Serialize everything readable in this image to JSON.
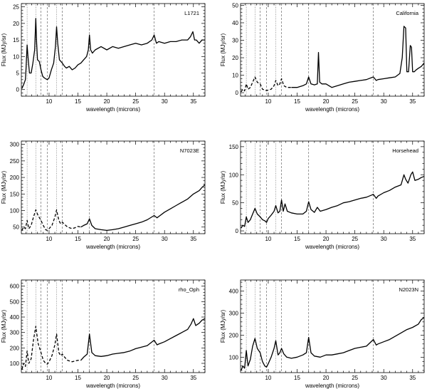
{
  "chart_data": [
    {
      "type": "line",
      "label": "L1721",
      "xlabel": "wavelength (microns)",
      "ylabel": "Flux (MJy/sr)",
      "xlim": [
        5.2,
        37
      ],
      "ylim": [
        -2,
        26
      ],
      "xticks": [
        10,
        15,
        20,
        25,
        30,
        35
      ],
      "yticks": [
        0,
        5,
        10,
        15,
        20,
        25
      ],
      "vlines_dotted": [
        6.2,
        7.7,
        11.3
      ],
      "vlines_dashed": [
        8.6,
        9.7,
        12.3,
        17.0,
        28.2
      ],
      "series": [
        {
          "name": "L1721 solid",
          "style": "solid",
          "x": [
            5.3,
            5.6,
            5.9,
            6.0,
            6.2,
            6.35,
            6.6,
            6.9,
            7.2,
            7.5,
            7.7,
            7.85,
            8.0,
            8.3,
            8.6,
            8.9,
            9.2,
            9.5,
            9.7,
            10.0,
            10.4,
            10.8,
            11.1,
            11.3,
            11.5,
            11.8,
            12.3,
            12.7,
            13.0,
            13.5,
            14.0,
            14.5,
            15.0,
            15.5,
            16.0,
            16.5,
            16.8,
            17.0,
            17.2,
            17.5,
            18.0,
            19.0,
            20.0,
            21.0,
            22.0,
            23.0,
            24.0,
            25.0,
            26.0,
            27.0,
            27.8,
            28.2,
            28.6,
            29.0,
            30.0,
            31.0,
            32.0,
            33.0,
            34.0,
            34.5,
            34.9,
            35.2,
            35.5,
            36.0,
            36.5,
            37.0
          ],
          "y": [
            0.3,
            1.5,
            3,
            6,
            13.5,
            10,
            5,
            5,
            8,
            12,
            21.5,
            14,
            9,
            8.5,
            6,
            4,
            3.5,
            3.2,
            3,
            3.5,
            6,
            8,
            13,
            19,
            14,
            9,
            8,
            7,
            6.5,
            7,
            6,
            6.5,
            7.5,
            8,
            9,
            10,
            12,
            16.5,
            12,
            11,
            12,
            13,
            12,
            13,
            12.5,
            13,
            13.5,
            14,
            13.5,
            14,
            15,
            16.5,
            14,
            14.5,
            14,
            14.5,
            14.5,
            15,
            15,
            16,
            17.5,
            15,
            15,
            14,
            15,
            15
          ]
        }
      ]
    },
    {
      "type": "line",
      "label": "California",
      "xlabel": "wavelength (microns)",
      "ylabel": "Flux (MJy/sr)",
      "xlim": [
        5.2,
        37
      ],
      "ylim": [
        -2,
        51
      ],
      "xticks": [
        10,
        15,
        20,
        25,
        30,
        35
      ],
      "yticks": [
        0,
        10,
        20,
        30,
        40,
        50
      ],
      "vlines_dotted": [
        6.2,
        7.7,
        11.3
      ],
      "vlines_dashed": [
        8.6,
        9.7,
        12.3,
        17.0,
        28.2
      ],
      "series": [
        {
          "name": "California dashed",
          "style": "dashed",
          "x": [
            5.3,
            5.6,
            5.9,
            6.2,
            6.5,
            6.9,
            7.3,
            7.7,
            8.1,
            8.6,
            9.0,
            9.4,
            9.7,
            10.0,
            10.5,
            11.0,
            11.3,
            11.7,
            12.0,
            12.3,
            12.7,
            13.2,
            14.0
          ],
          "y": [
            0.5,
            2,
            1,
            5,
            2,
            3,
            6,
            9,
            6,
            5,
            2,
            1.5,
            1.2,
            1.5,
            2,
            4,
            7,
            4,
            5,
            8,
            4,
            3,
            3
          ]
        },
        {
          "name": "California solid",
          "style": "solid",
          "x": [
            14.0,
            15.0,
            16.0,
            16.6,
            17.0,
            17.4,
            18.0,
            18.5,
            18.7,
            18.9,
            19.3,
            20.0,
            21.0,
            21.5,
            22.0,
            23.0,
            24.0,
            25.0,
            26.0,
            27.0,
            28.2,
            28.7,
            29.0,
            30.0,
            31.0,
            32.0,
            32.8,
            33.2,
            33.5,
            33.8,
            34.0,
            34.3,
            34.6,
            34.8,
            35.0,
            35.3,
            35.6,
            36.0,
            36.5,
            37.0
          ],
          "y": [
            3,
            3,
            4,
            5,
            9,
            5,
            4.5,
            5,
            23,
            6,
            5,
            5,
            3,
            3.5,
            4,
            5,
            6,
            6.5,
            7,
            7.5,
            9,
            7,
            7.5,
            8,
            8.5,
            9,
            11,
            20,
            38,
            37,
            12,
            12,
            27,
            26,
            12,
            12,
            13,
            14,
            15,
            17
          ]
        }
      ]
    },
    {
      "type": "line",
      "label": "N7023E",
      "xlabel": "wavelength (microns)",
      "ylabel": "Flux (MJy/sr)",
      "xlim": [
        5.2,
        37
      ],
      "ylim": [
        30,
        310
      ],
      "xticks": [
        10,
        15,
        20,
        25,
        30,
        35
      ],
      "yticks": [
        50,
        100,
        150,
        200,
        250,
        300
      ],
      "vlines_dotted": [
        6.2,
        7.7,
        11.3
      ],
      "vlines_dashed": [
        8.6,
        9.7,
        12.3,
        17.0,
        28.2
      ],
      "series": [
        {
          "name": "N7023E dashed",
          "style": "dashed",
          "x": [
            5.3,
            5.6,
            5.9,
            6.2,
            6.5,
            6.9,
            7.3,
            7.7,
            8.1,
            8.6,
            9.0,
            9.4,
            9.7,
            10.0,
            10.5,
            11.0,
            11.3,
            11.7,
            12.0,
            12.3,
            12.7,
            13.2,
            14.0,
            14.5,
            15.0,
            15.5
          ],
          "y": [
            40,
            50,
            45,
            70,
            45,
            55,
            80,
            102,
            85,
            70,
            55,
            42,
            40,
            45,
            55,
            80,
            102,
            70,
            60,
            65,
            58,
            50,
            45,
            48,
            52,
            50
          ]
        },
        {
          "name": "N7023E solid",
          "style": "solid",
          "x": [
            15.5,
            16.0,
            16.6,
            17.0,
            17.4,
            18.0,
            19.0,
            20.0,
            21.0,
            22.0,
            23.0,
            24.0,
            25.0,
            26.0,
            27.0,
            28.2,
            28.7,
            29.0,
            30.0,
            31.0,
            32.0,
            33.0,
            34.0,
            35.0,
            36.0,
            36.5,
            37.0
          ],
          "y": [
            50,
            55,
            60,
            75,
            55,
            45,
            42,
            40,
            42,
            45,
            50,
            55,
            60,
            65,
            72,
            85,
            78,
            82,
            95,
            105,
            115,
            125,
            135,
            150,
            160,
            170,
            178
          ]
        }
      ]
    },
    {
      "type": "line",
      "label": "Horsehead",
      "xlabel": "wavelength (microns)",
      "ylabel": "Flux (MJy/sr)",
      "xlim": [
        5.2,
        37
      ],
      "ylim": [
        -5,
        160
      ],
      "xticks": [
        10,
        15,
        20,
        25,
        30,
        35
      ],
      "yticks": [
        0,
        50,
        100,
        150
      ],
      "vlines_dotted": [
        6.2,
        7.7,
        11.3
      ],
      "vlines_dashed": [
        8.6,
        9.7,
        12.3,
        17.0,
        28.2
      ],
      "series": [
        {
          "name": "Horsehead solid",
          "style": "solid",
          "x": [
            5.3,
            5.6,
            5.9,
            6.2,
            6.5,
            6.9,
            7.3,
            7.7,
            8.1,
            8.6,
            9.0,
            9.4,
            9.7,
            10.0,
            10.5,
            11.0,
            11.3,
            11.7,
            12.0,
            12.3,
            12.6,
            12.9,
            13.3,
            14.0,
            15.0,
            16.0,
            16.6,
            17.0,
            17.4,
            18.0,
            18.5,
            19.0,
            20.0,
            21.0,
            22.0,
            23.0,
            24.0,
            25.0,
            26.0,
            27.0,
            28.2,
            28.7,
            29.0,
            30.0,
            31.0,
            32.0,
            33.0,
            33.5,
            33.8,
            34.2,
            34.7,
            35.0,
            35.4,
            36.0,
            36.5,
            37.0
          ],
          "y": [
            5,
            10,
            8,
            25,
            15,
            20,
            30,
            40,
            30,
            25,
            20,
            18,
            15,
            22,
            28,
            35,
            45,
            32,
            35,
            55,
            35,
            48,
            35,
            32,
            30,
            30,
            35,
            52,
            38,
            33,
            42,
            35,
            38,
            42,
            45,
            50,
            52,
            55,
            58,
            60,
            65,
            58,
            62,
            68,
            72,
            78,
            82,
            100,
            92,
            85,
            100,
            105,
            90,
            92,
            95,
            97
          ]
        }
      ]
    },
    {
      "type": "line",
      "label": "rho_Oph",
      "xlabel": "wavelength (microns)",
      "ylabel": "Flux (MJy/sr)",
      "xlim": [
        5.2,
        37
      ],
      "ylim": [
        40,
        640
      ],
      "xticks": [
        10,
        15,
        20,
        25,
        30,
        35
      ],
      "yticks": [
        100,
        200,
        300,
        400,
        500,
        600
      ],
      "vlines_dotted": [
        6.2,
        7.7,
        11.3
      ],
      "vlines_dashed": [
        8.6,
        9.7,
        12.3,
        17.0,
        28.2
      ],
      "series": [
        {
          "name": "rho_Oph dashed",
          "style": "dashed",
          "x": [
            5.3,
            5.6,
            5.9,
            6.2,
            6.5,
            6.9,
            7.3,
            7.7,
            8.1,
            8.6,
            9.0,
            9.4,
            9.7,
            10.0,
            10.5,
            11.0,
            11.3,
            11.7,
            12.0,
            12.3,
            12.7,
            13.2,
            14.0,
            15.0,
            15.5
          ],
          "y": [
            60,
            100,
            80,
            180,
            100,
            130,
            250,
            340,
            230,
            170,
            120,
            100,
            95,
            110,
            150,
            220,
            290,
            170,
            150,
            160,
            140,
            120,
            110,
            120,
            120
          ]
        },
        {
          "name": "rho_Oph solid",
          "style": "solid",
          "x": [
            15.5,
            16.0,
            16.6,
            17.0,
            17.4,
            18.0,
            19.0,
            20.0,
            21.0,
            22.0,
            23.0,
            24.0,
            25.0,
            26.0,
            27.0,
            28.2,
            28.7,
            29.0,
            30.0,
            31.0,
            32.0,
            33.0,
            34.0,
            34.6,
            35.0,
            35.4,
            36.0,
            36.5,
            37.0
          ],
          "y": [
            120,
            140,
            160,
            290,
            170,
            150,
            145,
            150,
            160,
            165,
            170,
            180,
            195,
            205,
            215,
            250,
            220,
            225,
            240,
            260,
            280,
            300,
            320,
            355,
            390,
            345,
            360,
            380,
            390
          ]
        }
      ]
    },
    {
      "type": "line",
      "label": "N2023N",
      "xlabel": "wavelength (microns)",
      "ylabel": "Flux (MJy/sr)",
      "xlim": [
        5.2,
        37
      ],
      "ylim": [
        30,
        450
      ],
      "xticks": [
        10,
        15,
        20,
        25,
        30,
        35
      ],
      "yticks": [
        100,
        200,
        300,
        400
      ],
      "vlines_dotted": [
        6.2,
        7.7,
        11.3
      ],
      "vlines_dashed": [
        8.6,
        9.7,
        12.3,
        17.0,
        28.2
      ],
      "series": [
        {
          "name": "N2023N solid",
          "style": "solid",
          "x": [
            5.3,
            5.6,
            5.9,
            6.2,
            6.5,
            6.9,
            7.3,
            7.7,
            8.1,
            8.6,
            9.0,
            9.4,
            9.7,
            10.0,
            10.5,
            11.0,
            11.3,
            11.7,
            12.0,
            12.3,
            12.7,
            13.2,
            14.0,
            15.0,
            16.0,
            16.6,
            17.0,
            17.4,
            18.0,
            19.0,
            20.0,
            21.0,
            22.0,
            23.0,
            24.0,
            25.0,
            26.0,
            27.0,
            28.2,
            28.7,
            29.0,
            30.0,
            31.0,
            32.0,
            33.0,
            34.0,
            35.0,
            36.0,
            36.5,
            37.0
          ],
          "y": [
            40,
            60,
            50,
            130,
            60,
            90,
            150,
            185,
            140,
            120,
            80,
            60,
            55,
            70,
            100,
            140,
            175,
            110,
            120,
            140,
            115,
            100,
            95,
            100,
            110,
            120,
            190,
            120,
            105,
            100,
            110,
            110,
            115,
            120,
            130,
            140,
            145,
            150,
            180,
            155,
            160,
            170,
            180,
            195,
            210,
            225,
            235,
            250,
            270,
            280
          ]
        }
      ]
    }
  ]
}
